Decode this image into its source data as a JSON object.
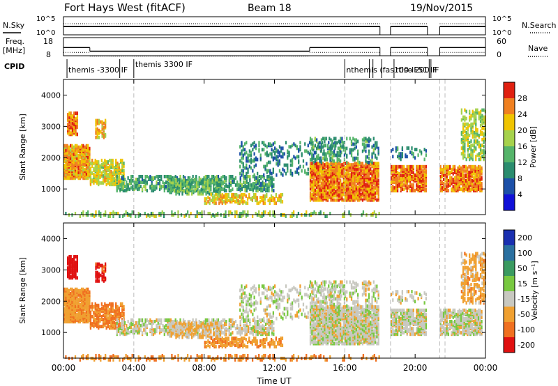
{
  "header": {
    "title": "Fort Hays West (fitACF)",
    "beam": "Beam 18",
    "date": "19/Nov/2015"
  },
  "chart_data": [
    {
      "type": "line",
      "panel": "noise",
      "left_label": "N.Sky",
      "right_label": "N.Search",
      "left_ticks": [
        "10^5",
        "10^0"
      ],
      "right_ticks": [
        "10^5",
        "10^0"
      ],
      "segments_utc": [
        [
          0.0,
          18.0
        ],
        [
          18.6,
          20.7
        ],
        [
          21.4,
          24.0
        ]
      ]
    },
    {
      "type": "line",
      "panel": "frequency",
      "left_label": "Freq.",
      "left_unit": "[MHz]",
      "right_label": "Nave",
      "left_ticks": [
        "18",
        "8"
      ],
      "right_ticks": [
        "60",
        "0"
      ],
      "ylim": [
        8,
        18
      ],
      "freq_steps": [
        {
          "t0": 0.0,
          "t1": 1.5,
          "mhz": 12.5
        },
        {
          "t0": 1.5,
          "t1": 14.0,
          "mhz": 10.5
        },
        {
          "t0": 14.0,
          "t1": 18.0,
          "mhz": 12.5
        },
        {
          "t0": 18.6,
          "t1": 20.7,
          "mhz": 12.5
        },
        {
          "t0": 21.4,
          "t1": 24.0,
          "mhz": 12.5
        }
      ],
      "nave_level": 18
    },
    {
      "type": "table",
      "panel": "cpid",
      "label": "CPID",
      "entries": [
        {
          "t": 0.2,
          "text": "themis -3300"
        },
        {
          "t": 3.2,
          "text": "IF"
        },
        {
          "t": 4.0,
          "text": "themis 3300 IF"
        },
        {
          "t": 16.0,
          "text": "nthemis (fas100-IF51 IF"
        },
        {
          "t": 18.8,
          "text": "rtiso 200"
        },
        {
          "t": 20.9,
          "text": "IF"
        }
      ]
    },
    {
      "type": "heatmap",
      "panel": "power",
      "ylabel": "Slant Range [km]",
      "yticks": [
        1000,
        2000,
        3000,
        4000
      ],
      "ylim": [
        180,
        4500
      ],
      "xlim": [
        0,
        24
      ],
      "colorbar_label": "Power [dB]",
      "colorbar_ticks": [
        4,
        8,
        12,
        16,
        20,
        24,
        28
      ],
      "clim": [
        0,
        32
      ],
      "colors": [
        "#1010d8",
        "#1c50a8",
        "#2a8c6e",
        "#55b46a",
        "#a6d24c",
        "#f0c400",
        "#f08020",
        "#e02010"
      ]
    },
    {
      "type": "heatmap",
      "panel": "velocity",
      "ylabel": "Slant Range [km]",
      "yticks": [
        1000,
        2000,
        3000,
        4000
      ],
      "ylim": [
        180,
        4500
      ],
      "xlim": [
        0,
        24
      ],
      "colorbar_label": "Velocity [m s⁻¹]",
      "colorbar_ticks": [
        "200",
        "100",
        "50",
        "15",
        "-15",
        "-50",
        "-100",
        "-200"
      ],
      "colors": [
        "#1a2fb0",
        "#2a70a0",
        "#3a9a60",
        "#78c840",
        "#c8c8c0",
        "#f0a030",
        "#f07020",
        "#e01010"
      ],
      "xticks": [
        "00:00",
        "04:00",
        "08:00",
        "12:00",
        "16:00",
        "20:00",
        "00:00"
      ],
      "xlabel": "Time UT"
    }
  ]
}
